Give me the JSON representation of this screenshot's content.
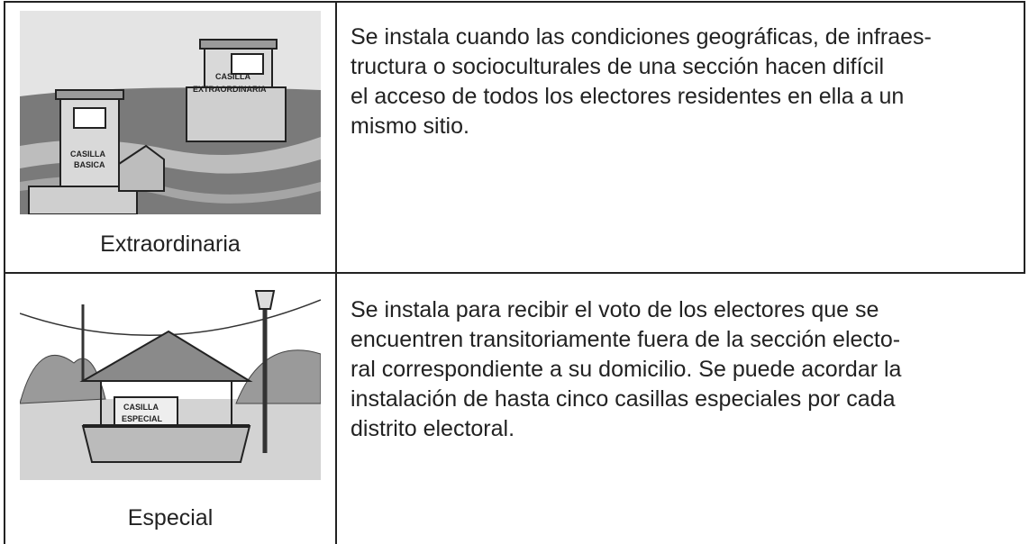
{
  "table": {
    "rows": [
      {
        "caption": "Extraordinaria",
        "image_labels": [
          "CASILLA",
          "EXTRAORDINARIA",
          "CASILLA",
          "BASICA"
        ],
        "description_lines": [
          "Se instala cuando las condiciones geográficas, de infraes-",
          "tructura o socioculturales de una sección hacen difícil",
          "el acceso de todos los electores residentes en ella a un",
          "mismo sitio."
        ]
      },
      {
        "caption": "Especial",
        "image_labels": [
          "CASILLA",
          "ESPECIAL"
        ],
        "description_lines": [
          "Se instala para recibir el voto de los electores que se",
          "encuentren transitoriamente fuera de la sección electo-",
          "ral correspondiente a su domicilio. Se puede acordar la",
          "instalación de hasta cinco casillas especiales por cada",
          "distrito electoral."
        ]
      }
    ]
  }
}
